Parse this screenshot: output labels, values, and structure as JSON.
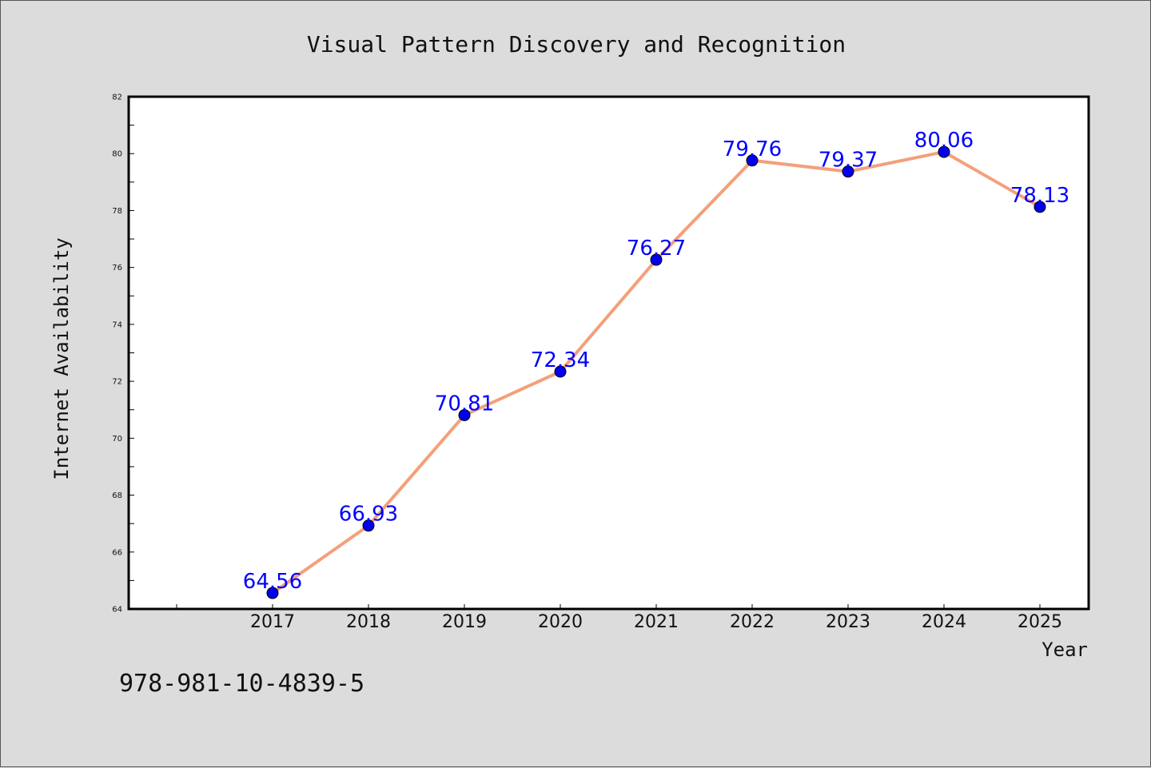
{
  "chart_data": {
    "type": "line",
    "title": "Visual Pattern Discovery and Recognition",
    "xlabel": "Year",
    "ylabel": "Internet Availability",
    "categories": [
      "2017",
      "2018",
      "2019",
      "2020",
      "2021",
      "2022",
      "2023",
      "2024",
      "2025"
    ],
    "series": [
      {
        "values": [
          64.56,
          66.93,
          70.81,
          72.34,
          76.27,
          79.76,
          79.37,
          80.06,
          78.13
        ],
        "data_labels": [
          "64.56",
          "66.93",
          "70.81",
          "72.34",
          "76.27",
          "79.76",
          "79.37",
          "80.06",
          "78.13"
        ],
        "line_color": "#f4a07a",
        "marker_color": "#0000ee"
      }
    ],
    "ylim": [
      64,
      82
    ],
    "y_ticks": [
      "64",
      "66",
      "68",
      "70",
      "72",
      "74",
      "76",
      "78",
      "80",
      "82"
    ],
    "grid": false,
    "label_color": "#0000ff",
    "annotation": "978-981-10-4839-5"
  }
}
